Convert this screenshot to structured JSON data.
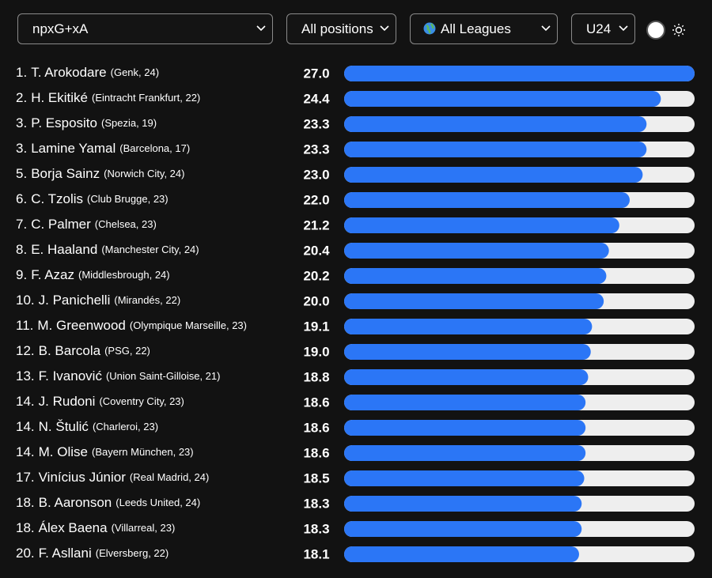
{
  "controls": {
    "metric": "npxG+xA",
    "position": "All positions",
    "league": "All Leagues",
    "age": "U24"
  },
  "chart_data": {
    "type": "bar",
    "orientation": "horizontal",
    "ranks": [
      "1.",
      "2.",
      "3.",
      "3.",
      "5.",
      "6.",
      "7.",
      "8.",
      "9.",
      "10.",
      "11.",
      "12.",
      "13.",
      "14.",
      "14.",
      "14.",
      "17.",
      "18.",
      "18.",
      "20."
    ],
    "categories": [
      "T. Arokodare",
      "H. Ekitiké",
      "P. Esposito",
      "Lamine Yamal",
      "Borja Sainz",
      "C. Tzolis",
      "C. Palmer",
      "E. Haaland",
      "F. Azaz",
      "J. Panichelli",
      "M. Greenwood",
      "B. Barcola",
      "F. Ivanović",
      "J. Rudoni",
      "N. Štulić",
      "M. Olise",
      "Vinícius Júnior",
      "B. Aaronson",
      "Álex Baena",
      "F. Asllani"
    ],
    "details": [
      "(Genk, 24)",
      "(Eintracht Frankfurt, 22)",
      "(Spezia, 19)",
      "(Barcelona, 17)",
      "(Norwich City, 24)",
      "(Club Brugge, 23)",
      "(Chelsea, 23)",
      "(Manchester City, 24)",
      "(Middlesbrough, 24)",
      "(Mirandés, 22)",
      "(Olympique Marseille, 23)",
      "(PSG, 22)",
      "(Union Saint-Gilloise, 21)",
      "(Coventry City, 23)",
      "(Charleroi, 23)",
      "(Bayern München, 23)",
      "(Real Madrid, 24)",
      "(Leeds United, 24)",
      "(Villarreal, 23)",
      "(Elversberg, 22)"
    ],
    "values": [
      27.0,
      24.4,
      23.3,
      23.3,
      23.0,
      22.0,
      21.2,
      20.4,
      20.2,
      20.0,
      19.1,
      19.0,
      18.8,
      18.6,
      18.6,
      18.6,
      18.5,
      18.3,
      18.3,
      18.1
    ],
    "value_labels": [
      "27.0",
      "24.4",
      "23.3",
      "23.3",
      "23.0",
      "22.0",
      "21.2",
      "20.4",
      "20.2",
      "20.0",
      "19.1",
      "19.0",
      "18.8",
      "18.6",
      "18.6",
      "18.6",
      "18.5",
      "18.3",
      "18.3",
      "18.1"
    ],
    "color": "#2b76f6",
    "track_color": "#eeeeee",
    "xlim": [
      0,
      27
    ]
  }
}
